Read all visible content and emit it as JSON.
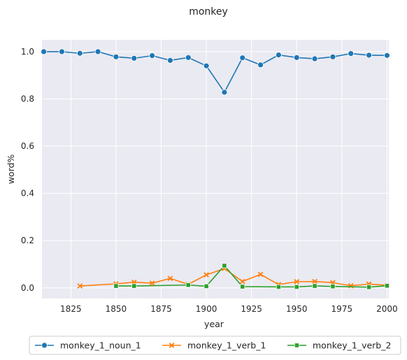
{
  "chart_data": {
    "type": "line",
    "title": "monkey",
    "xlabel": "year",
    "ylabel": "word%",
    "xlim": [
      1809,
      2001
    ],
    "ylim": [
      -0.045,
      1.05
    ],
    "xticks": [
      1825,
      1850,
      1875,
      1900,
      1925,
      1950,
      1975,
      2000
    ],
    "yticks": [
      0.0,
      0.2,
      0.4,
      0.6,
      0.8,
      1.0
    ],
    "xtick_labels": [
      "1825",
      "1850",
      "1875",
      "1900",
      "1925",
      "1950",
      "1975",
      "2000"
    ],
    "ytick_labels": [
      "0.0",
      "0.2",
      "0.4",
      "0.6",
      "0.8",
      "1.0"
    ],
    "grid": true,
    "legend_position": "bottom-center",
    "series": [
      {
        "name": "monkey_1_noun_1",
        "color": "#1f77b4",
        "marker": "circle",
        "x": [
          1810,
          1820,
          1830,
          1840,
          1850,
          1860,
          1870,
          1880,
          1890,
          1900,
          1910,
          1920,
          1930,
          1940,
          1950,
          1960,
          1970,
          1980,
          1990,
          2000
        ],
        "y": [
          1.0,
          1.0,
          0.993,
          1.0,
          0.978,
          0.972,
          0.983,
          0.963,
          0.975,
          0.94,
          0.828,
          0.974,
          0.944,
          0.986,
          0.975,
          0.97,
          0.978,
          0.992,
          0.985,
          0.984
        ]
      },
      {
        "name": "monkey_1_verb_1",
        "color": "#ff7f0e",
        "marker": "x",
        "x": [
          1830,
          1850,
          1860,
          1870,
          1880,
          1890,
          1900,
          1910,
          1920,
          1930,
          1940,
          1950,
          1960,
          1970,
          1980,
          1990,
          2000
        ],
        "y": [
          0.008,
          0.017,
          0.024,
          0.02,
          0.04,
          0.015,
          0.055,
          0.082,
          0.027,
          0.057,
          0.014,
          0.026,
          0.027,
          0.022,
          0.009,
          0.016,
          0.011
        ]
      },
      {
        "name": "monkey_1_verb_2",
        "color": "#2ca02c",
        "marker": "square",
        "x": [
          1850,
          1860,
          1890,
          1900,
          1910,
          1920,
          1940,
          1950,
          1960,
          1970,
          1990,
          2000
        ],
        "y": [
          0.008,
          0.008,
          0.012,
          0.007,
          0.094,
          0.005,
          0.004,
          0.004,
          0.008,
          0.006,
          0.003,
          0.009
        ]
      }
    ]
  }
}
